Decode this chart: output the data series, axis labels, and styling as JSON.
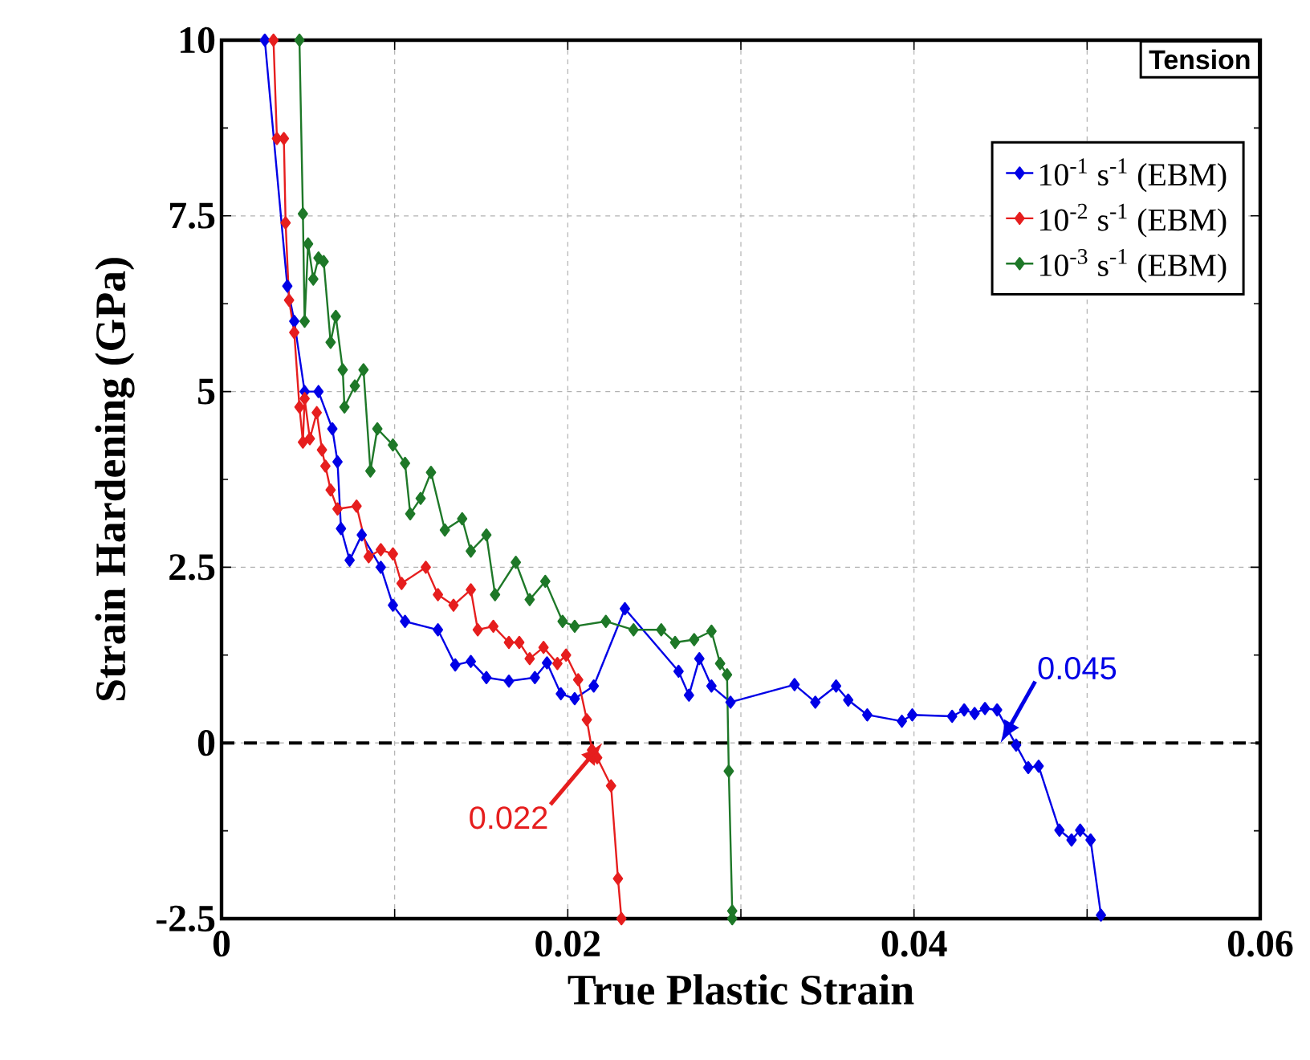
{
  "chart_data": {
    "type": "line",
    "xlabel": "True Plastic Strain",
    "ylabel": "Strain Hardening (GPa)",
    "xlim": [
      0,
      0.06
    ],
    "ylim": [
      -2.5,
      10
    ],
    "xticks": [
      0,
      {
        "value": 0.01,
        "label": null
      },
      0.02,
      {
        "value": 0.03,
        "label": null
      },
      0.04,
      {
        "value": 0.05,
        "label": null
      },
      0.06
    ],
    "yticks": [
      -2.5,
      0,
      2.5,
      5,
      7.5,
      10
    ],
    "grid": true,
    "legend": "top right",
    "marker": "diamond",
    "line_style": "solid",
    "ref_lines": [
      {
        "axis": "y",
        "value": 0,
        "color": "#000000",
        "line_style": "dashed"
      }
    ],
    "annotations": [
      "Tension",
      {
        "text": "0.022",
        "x": 0.022,
        "y": 0
      },
      {
        "text": "0.045",
        "x": 0.045,
        "y": 0
      }
    ],
    "series": [
      {
        "name": "10$^{-1}$ s$^{-1}$ (EBM)",
        "color": "#0000e6",
        "x": [
          0.0025,
          0.0038,
          0.0042,
          0.0048,
          0.0056,
          0.0064,
          0.0067,
          0.0069,
          0.0074,
          0.0081,
          0.0092,
          0.0099,
          0.0106,
          0.0125,
          0.0135,
          0.0144,
          0.0153,
          0.0166,
          0.0181,
          0.0188,
          0.0196,
          0.0204,
          0.0215,
          0.0233,
          0.0264,
          0.027,
          0.0276,
          0.0283,
          0.0294,
          0.0331,
          0.0343,
          0.0355,
          0.0362,
          0.0373,
          0.0393,
          0.0399,
          0.0422,
          0.0429,
          0.0435,
          0.0441,
          0.0448,
          0.0459,
          0.0466,
          0.0472,
          0.0484,
          0.0491,
          0.0496,
          0.0502,
          0.0508
        ],
        "values": [
          10,
          6.5,
          6.0,
          5.0,
          5.0,
          4.47,
          4.0,
          3.05,
          2.6,
          2.96,
          2.5,
          1.96,
          1.73,
          1.61,
          1.11,
          1.16,
          0.93,
          0.88,
          0.93,
          1.14,
          0.7,
          0.63,
          0.81,
          1.91,
          1.02,
          0.68,
          1.2,
          0.81,
          0.58,
          0.83,
          0.58,
          0.81,
          0.61,
          0.4,
          0.31,
          0.4,
          0.38,
          0.47,
          0.42,
          0.49,
          0.47,
          -0.03,
          -0.35,
          -0.33,
          -1.24,
          -1.38,
          -1.24,
          -1.38,
          -2.45
        ]
      },
      {
        "name": "10$^{-2}$ s$^{-1}$ (EBM)",
        "color": "#e61e1e",
        "x": [
          0.003,
          0.0032,
          0.0036,
          0.0037,
          0.0039,
          0.0042,
          0.0045,
          0.0047,
          0.0048,
          0.0051,
          0.0055,
          0.0058,
          0.006,
          0.0063,
          0.0067,
          0.0078,
          0.0085,
          0.0092,
          0.0099,
          0.0104,
          0.0118,
          0.0125,
          0.0134,
          0.0144,
          0.0148,
          0.0157,
          0.0166,
          0.0172,
          0.0178,
          0.0186,
          0.0194,
          0.0199,
          0.0206,
          0.0211,
          0.0214,
          0.0217,
          0.0225,
          0.0229,
          0.0231
        ],
        "values": [
          10,
          8.6,
          8.6,
          7.4,
          6.3,
          5.84,
          4.78,
          4.28,
          4.9,
          4.33,
          4.7,
          4.17,
          3.94,
          3.6,
          3.33,
          3.37,
          2.65,
          2.75,
          2.69,
          2.27,
          2.5,
          2.11,
          1.96,
          2.18,
          1.61,
          1.66,
          1.43,
          1.43,
          1.2,
          1.36,
          1.13,
          1.25,
          0.9,
          0.33,
          -0.1,
          -0.21,
          -0.61,
          -1.93,
          -2.5
        ]
      },
      {
        "name": "10$^{-3}$ s$^{-1}$ (EBM)",
        "color": "#1e7828",
        "x": [
          0.0045,
          0.0047,
          0.0048,
          0.005,
          0.0053,
          0.0056,
          0.0059,
          0.0063,
          0.0066,
          0.007,
          0.0071,
          0.0077,
          0.0082,
          0.0086,
          0.009,
          0.0099,
          0.0106,
          0.0109,
          0.0115,
          0.0121,
          0.0129,
          0.0139,
          0.0144,
          0.0153,
          0.0158,
          0.017,
          0.0178,
          0.0187,
          0.0197,
          0.0204,
          0.0222,
          0.0238,
          0.0254,
          0.0262,
          0.0273,
          0.0283,
          0.0288,
          0.0292,
          0.0293,
          0.0295,
          0.0295
        ],
        "values": [
          10,
          7.53,
          6.0,
          7.1,
          6.6,
          6.9,
          6.85,
          5.7,
          6.07,
          5.31,
          4.78,
          5.08,
          5.31,
          3.87,
          4.47,
          4.24,
          3.98,
          3.26,
          3.48,
          3.85,
          3.03,
          3.19,
          2.73,
          2.96,
          2.11,
          2.57,
          2.04,
          2.3,
          1.73,
          1.66,
          1.73,
          1.61,
          1.61,
          1.43,
          1.47,
          1.59,
          1.13,
          0.97,
          -0.4,
          -2.39,
          -2.5
        ]
      }
    ]
  }
}
